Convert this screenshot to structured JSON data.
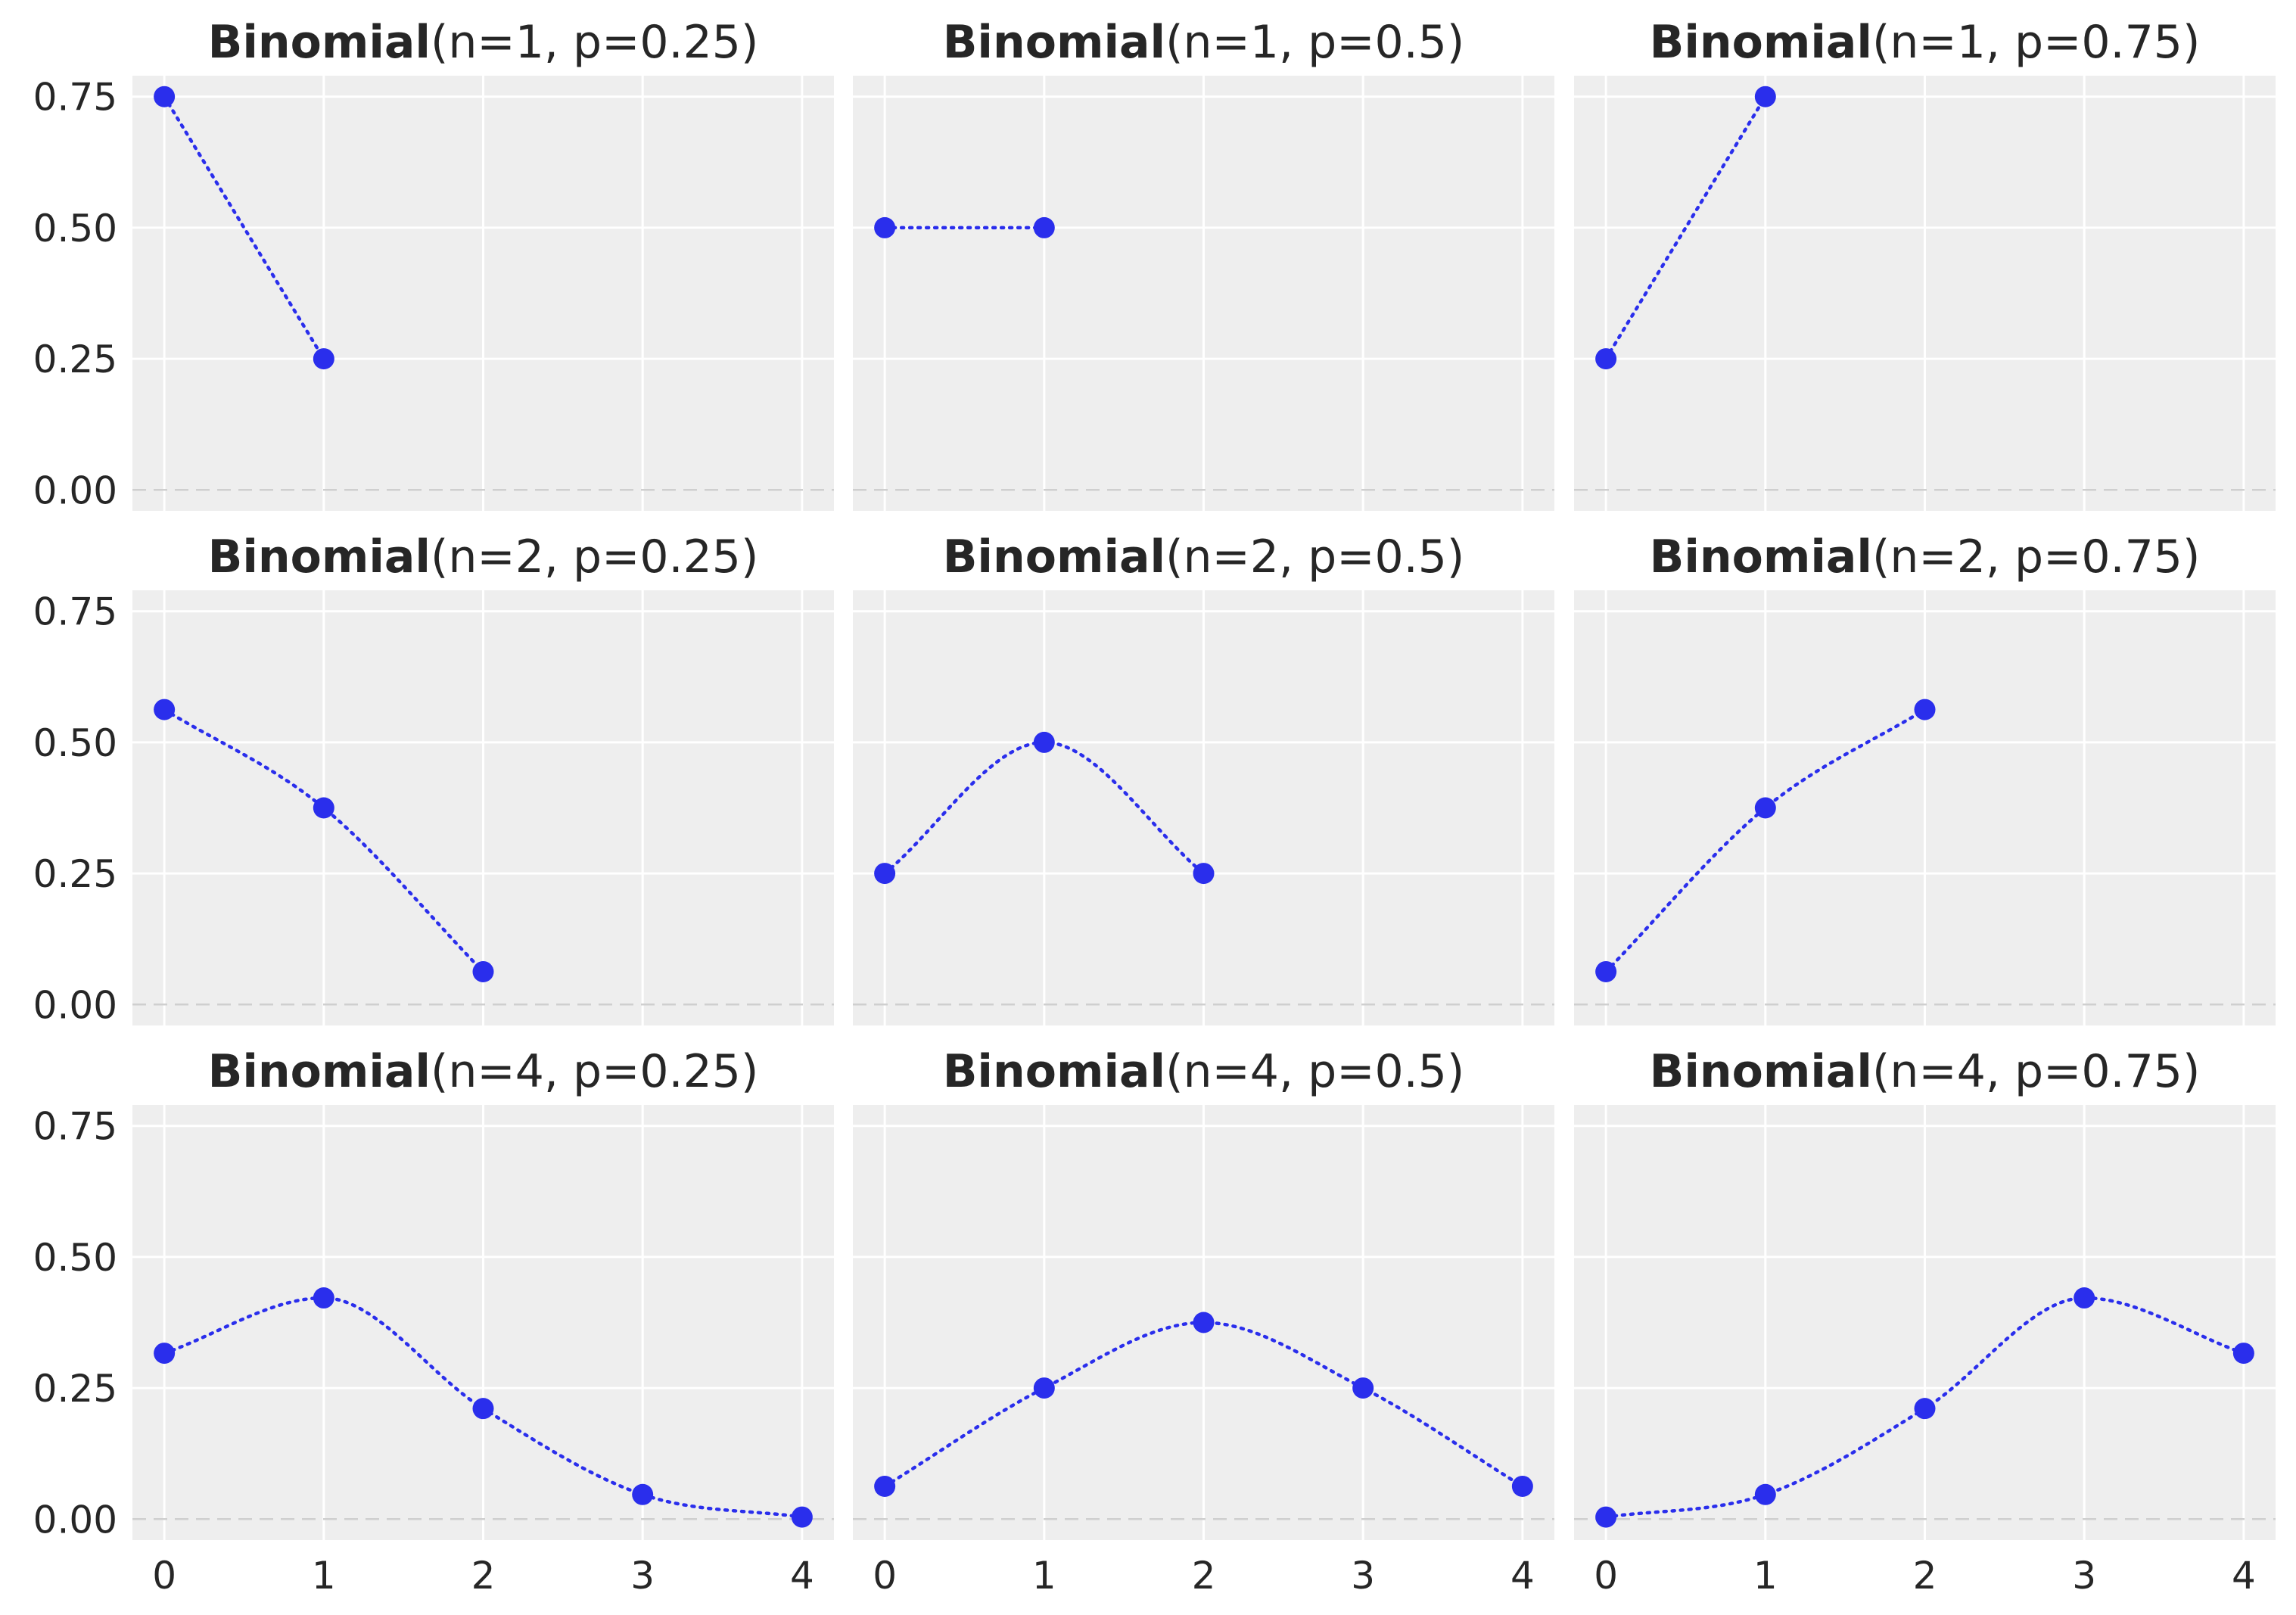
{
  "style": {
    "panel_bg": "#eeeeee",
    "point_color": "#2a2eec",
    "grid_color": "#ffffff",
    "text_color": "#262626"
  },
  "axes": {
    "y_ticks": [
      0.0,
      0.25,
      0.5,
      0.75
    ],
    "y_tick_labels": [
      "0.00",
      "0.25",
      "0.50",
      "0.75"
    ],
    "x_ticks": [
      0,
      1,
      2,
      3,
      4
    ],
    "x_tick_labels": [
      "0",
      "1",
      "2",
      "3",
      "4"
    ],
    "xlim": [
      -0.2,
      4.2
    ],
    "ylim": [
      -0.04,
      0.79
    ]
  },
  "chart_data": [
    {
      "type": "line",
      "title_bold": "Binomial",
      "title_rest": "(n=1, p=0.25)",
      "x": [
        0,
        1
      ],
      "y": [
        0.75,
        0.25
      ]
    },
    {
      "type": "line",
      "title_bold": "Binomial",
      "title_rest": "(n=1, p=0.5)",
      "x": [
        0,
        1
      ],
      "y": [
        0.5,
        0.5
      ]
    },
    {
      "type": "line",
      "title_bold": "Binomial",
      "title_rest": "(n=1, p=0.75)",
      "x": [
        0,
        1
      ],
      "y": [
        0.25,
        0.75
      ]
    },
    {
      "type": "line",
      "title_bold": "Binomial",
      "title_rest": "(n=2, p=0.25)",
      "x": [
        0,
        1,
        2
      ],
      "y": [
        0.5625,
        0.375,
        0.0625
      ]
    },
    {
      "type": "line",
      "title_bold": "Binomial",
      "title_rest": "(n=2, p=0.5)",
      "x": [
        0,
        1,
        2
      ],
      "y": [
        0.25,
        0.5,
        0.25
      ]
    },
    {
      "type": "line",
      "title_bold": "Binomial",
      "title_rest": "(n=2, p=0.75)",
      "x": [
        0,
        1,
        2
      ],
      "y": [
        0.0625,
        0.375,
        0.5625
      ]
    },
    {
      "type": "line",
      "title_bold": "Binomial",
      "title_rest": "(n=4, p=0.25)",
      "x": [
        0,
        1,
        2,
        3,
        4
      ],
      "y": [
        0.3164,
        0.4219,
        0.2109,
        0.0469,
        0.0039
      ]
    },
    {
      "type": "line",
      "title_bold": "Binomial",
      "title_rest": "(n=4, p=0.5)",
      "x": [
        0,
        1,
        2,
        3,
        4
      ],
      "y": [
        0.0625,
        0.25,
        0.375,
        0.25,
        0.0625
      ]
    },
    {
      "type": "line",
      "title_bold": "Binomial",
      "title_rest": "(n=4, p=0.75)",
      "x": [
        0,
        1,
        2,
        3,
        4
      ],
      "y": [
        0.0039,
        0.0469,
        0.2109,
        0.4219,
        0.3164
      ]
    }
  ]
}
